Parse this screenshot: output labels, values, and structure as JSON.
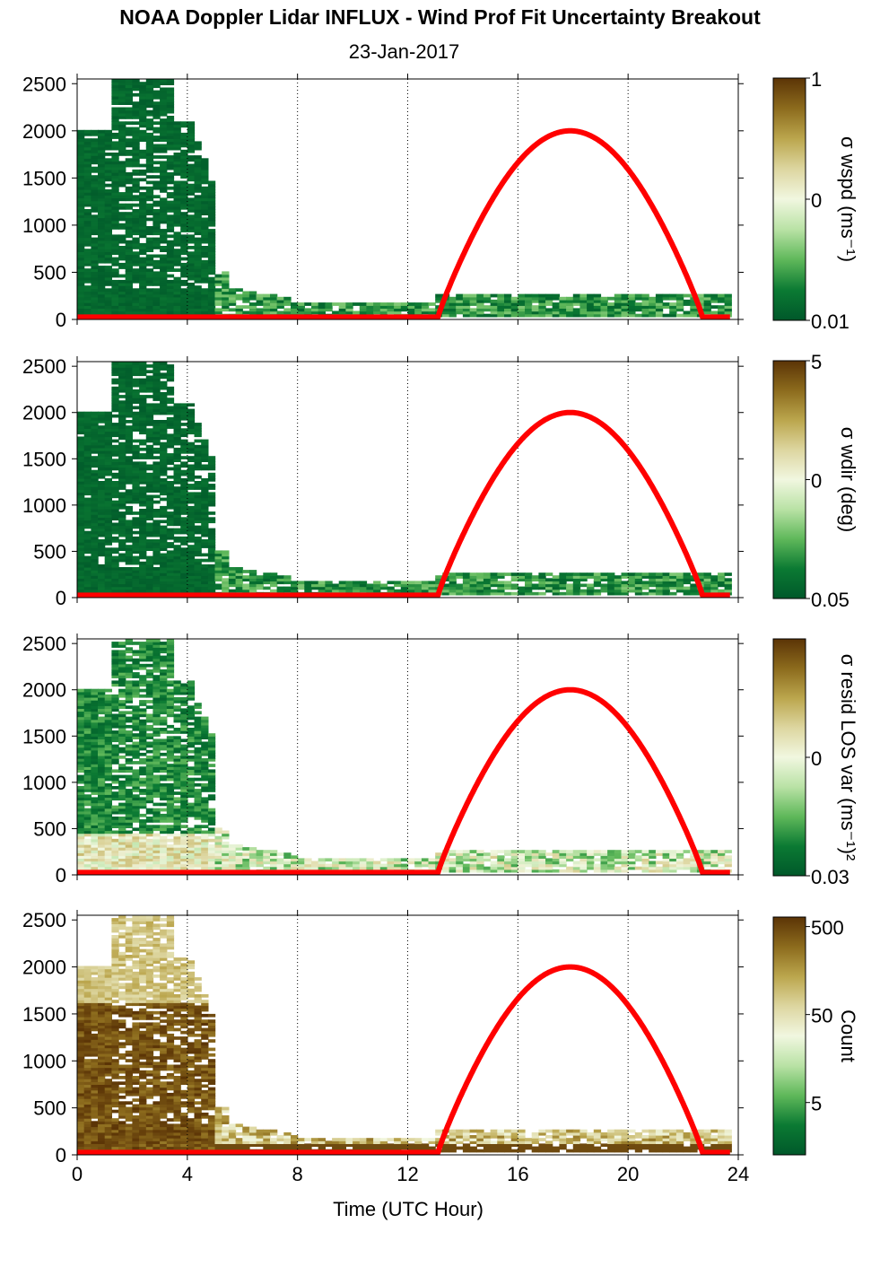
{
  "figure": {
    "title": "NOAA Doppler Lidar INFLUX - Wind Prof Fit Uncertainty Breakout",
    "subtitle": "23-Jan-2017",
    "xlabel": "Time (UTC Hour)"
  },
  "colors": {
    "sun_curve": "#ff0000",
    "colormap": [
      "#00582a",
      "#0b7a33",
      "#5fb85a",
      "#b9e2a5",
      "#f1f7e0",
      "#ddd6a0",
      "#bba64d",
      "#8c6b1d",
      "#5b3406"
    ]
  },
  "chart_data": [
    {
      "type": "heatmap",
      "ylabel": "",
      "xlim": [
        0,
        24
      ],
      "ylim": [
        0,
        2550
      ],
      "xticks": [
        0,
        4,
        8,
        12,
        16,
        20,
        24
      ],
      "yticks": [
        0,
        500,
        1000,
        1500,
        2000,
        2500
      ],
      "vertical_grid": [
        4,
        8,
        12,
        16,
        20,
        24
      ],
      "colorbar": {
        "label": "σ wspd (ms⁻¹)",
        "ticks": [
          "1",
          "0",
          "0.01"
        ],
        "scale": "log"
      },
      "sun_elevation_curve": {
        "color": "#ff0000",
        "rise_hour": 13.1,
        "noon_hour": 17.9,
        "set_hour": 22.7,
        "peak_height": 2000
      }
    },
    {
      "type": "heatmap",
      "ylabel": "",
      "xlim": [
        0,
        24
      ],
      "ylim": [
        0,
        2550
      ],
      "xticks": [
        0,
        4,
        8,
        12,
        16,
        20,
        24
      ],
      "yticks": [
        0,
        500,
        1000,
        1500,
        2000,
        2500
      ],
      "vertical_grid": [
        4,
        8,
        12,
        16,
        20,
        24
      ],
      "colorbar": {
        "label": "σ wdir (deg)",
        "ticks": [
          "5",
          "0",
          "0.05"
        ],
        "scale": "log"
      },
      "sun_elevation_curve": {
        "color": "#ff0000",
        "rise_hour": 13.1,
        "noon_hour": 17.9,
        "set_hour": 22.7,
        "peak_height": 2000
      }
    },
    {
      "type": "heatmap",
      "ylabel": "",
      "xlim": [
        0,
        24
      ],
      "ylim": [
        0,
        2550
      ],
      "xticks": [
        0,
        4,
        8,
        12,
        16,
        20,
        24
      ],
      "yticks": [
        0,
        500,
        1000,
        1500,
        2000,
        2500
      ],
      "vertical_grid": [
        4,
        8,
        12,
        16,
        20,
        24
      ],
      "colorbar": {
        "label": "σ resid LOS var (ms⁻¹)²",
        "ticks": [
          "0",
          "0.03"
        ],
        "scale": "log"
      },
      "sun_elevation_curve": {
        "color": "#ff0000",
        "rise_hour": 13.1,
        "noon_hour": 17.9,
        "set_hour": 22.7,
        "peak_height": 2000
      }
    },
    {
      "type": "heatmap",
      "ylabel": "",
      "xlim": [
        0,
        24
      ],
      "ylim": [
        0,
        2550
      ],
      "xticks": [
        0,
        4,
        8,
        12,
        16,
        20,
        24
      ],
      "yticks": [
        0,
        500,
        1000,
        1500,
        2000,
        2500
      ],
      "vertical_grid": [
        4,
        8,
        12,
        16,
        20,
        24
      ],
      "colorbar": {
        "label": "Count",
        "ticks": [
          "500",
          "50",
          "5"
        ],
        "scale": "log"
      },
      "sun_elevation_curve": {
        "color": "#ff0000",
        "rise_hour": 13.1,
        "noon_hour": 17.9,
        "set_hour": 22.7,
        "peak_height": 2000
      }
    }
  ]
}
